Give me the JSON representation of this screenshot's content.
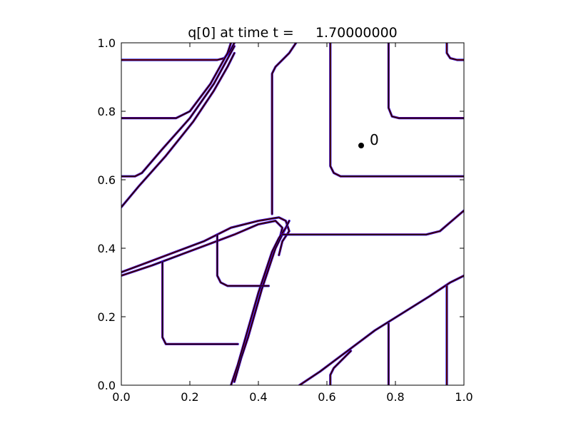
{
  "chart_data": {
    "type": "line",
    "title": "q[0] at time t =     1.70000000",
    "xlabel": "",
    "ylabel": "",
    "xlim": [
      0.0,
      1.0
    ],
    "ylim": [
      0.0,
      1.0
    ],
    "x_ticks": [
      "0.0",
      "0.2",
      "0.4",
      "0.6",
      "0.8",
      "1.0"
    ],
    "y_ticks": [
      "0.0",
      "0.2",
      "0.4",
      "0.6",
      "0.8",
      "1.0"
    ],
    "grid": false,
    "legend": "none",
    "colors": {
      "contour_black": "#000000",
      "contour_blue": "#0000ff",
      "contour_red": "#ff0000",
      "marker": "#000000"
    },
    "annotation": {
      "text": "0",
      "x": 0.7,
      "y": 0.7
    },
    "series": [
      {
        "values": [
          [
            0.0,
            0.95
          ],
          [
            0.28,
            0.95
          ],
          [
            0.3,
            0.955
          ],
          [
            0.32,
            0.98
          ],
          [
            0.33,
            1.0
          ]
        ]
      },
      {
        "values": [
          [
            0.0,
            0.78
          ],
          [
            0.11,
            0.78
          ],
          [
            0.16,
            0.78
          ],
          [
            0.2,
            0.8
          ],
          [
            0.26,
            0.88
          ],
          [
            0.31,
            0.97
          ],
          [
            0.32,
            1.0
          ]
        ]
      },
      {
        "values": [
          [
            0.0,
            0.61
          ],
          [
            0.04,
            0.61
          ],
          [
            0.06,
            0.62
          ],
          [
            0.12,
            0.69
          ],
          [
            0.2,
            0.78
          ],
          [
            0.27,
            0.88
          ],
          [
            0.33,
            0.99
          ]
        ]
      },
      {
        "values": [
          [
            0.0,
            0.52
          ],
          [
            0.05,
            0.58
          ],
          [
            0.13,
            0.67
          ],
          [
            0.21,
            0.77
          ],
          [
            0.27,
            0.86
          ],
          [
            0.31,
            0.93
          ],
          [
            0.33,
            0.97
          ]
        ]
      },
      {
        "values": [
          [
            0.44,
            0.5
          ],
          [
            0.44,
            0.91
          ],
          [
            0.45,
            0.93
          ],
          [
            0.49,
            0.97
          ],
          [
            0.51,
            1.0
          ]
        ]
      },
      {
        "values": [
          [
            0.61,
            1.0
          ],
          [
            0.61,
            0.64
          ],
          [
            0.62,
            0.62
          ],
          [
            0.64,
            0.61
          ],
          [
            1.0,
            0.61
          ]
        ]
      },
      {
        "values": [
          [
            0.78,
            1.0
          ],
          [
            0.78,
            0.81
          ],
          [
            0.79,
            0.785
          ],
          [
            0.81,
            0.78
          ],
          [
            1.0,
            0.78
          ]
        ]
      },
      {
        "values": [
          [
            0.95,
            1.0
          ],
          [
            0.95,
            0.97
          ],
          [
            0.96,
            0.955
          ],
          [
            0.98,
            0.95
          ],
          [
            1.0,
            0.95
          ]
        ]
      },
      {
        "values": [
          [
            0.0,
            0.33
          ],
          [
            0.08,
            0.36
          ],
          [
            0.16,
            0.39
          ],
          [
            0.24,
            0.42
          ],
          [
            0.32,
            0.46
          ],
          [
            0.4,
            0.48
          ],
          [
            0.46,
            0.49
          ],
          [
            0.48,
            0.48
          ],
          [
            0.49,
            0.45
          ],
          [
            0.47,
            0.42
          ],
          [
            0.46,
            0.38
          ]
        ]
      },
      {
        "values": [
          [
            0.0,
            0.32
          ],
          [
            0.09,
            0.35
          ],
          [
            0.17,
            0.38
          ],
          [
            0.25,
            0.41
          ],
          [
            0.33,
            0.44
          ],
          [
            0.4,
            0.47
          ],
          [
            0.45,
            0.48
          ],
          [
            0.47,
            0.46
          ],
          [
            0.46,
            0.42
          ]
        ]
      },
      {
        "values": [
          [
            0.33,
            0.01
          ],
          [
            0.35,
            0.08
          ],
          [
            0.37,
            0.14
          ],
          [
            0.39,
            0.21
          ],
          [
            0.41,
            0.28
          ],
          [
            0.43,
            0.34
          ],
          [
            0.45,
            0.4
          ],
          [
            0.47,
            0.44
          ],
          [
            0.49,
            0.48
          ]
        ]
      },
      {
        "values": [
          [
            0.32,
            0.0
          ],
          [
            0.34,
            0.06
          ],
          [
            0.36,
            0.13
          ],
          [
            0.38,
            0.2
          ],
          [
            0.4,
            0.27
          ],
          [
            0.42,
            0.33
          ],
          [
            0.44,
            0.39
          ],
          [
            0.46,
            0.43
          ],
          [
            0.48,
            0.46
          ]
        ]
      },
      {
        "values": [
          [
            0.47,
            0.44
          ],
          [
            0.6,
            0.44
          ],
          [
            0.89,
            0.44
          ],
          [
            0.93,
            0.45
          ],
          [
            1.0,
            0.51
          ]
        ]
      },
      {
        "values": [
          [
            0.28,
            0.44
          ],
          [
            0.28,
            0.32
          ],
          [
            0.29,
            0.3
          ],
          [
            0.31,
            0.29
          ],
          [
            0.43,
            0.29
          ]
        ]
      },
      {
        "values": [
          [
            0.12,
            0.36
          ],
          [
            0.12,
            0.14
          ],
          [
            0.13,
            0.12
          ],
          [
            0.15,
            0.12
          ],
          [
            0.34,
            0.12
          ]
        ]
      },
      {
        "values": [
          [
            0.52,
            0.0
          ],
          [
            0.58,
            0.04
          ],
          [
            0.66,
            0.1
          ],
          [
            0.74,
            0.16
          ],
          [
            0.82,
            0.21
          ],
          [
            0.9,
            0.26
          ],
          [
            0.96,
            0.3
          ],
          [
            1.0,
            0.32
          ]
        ]
      },
      {
        "values": [
          [
            0.61,
            0.0
          ],
          [
            0.61,
            0.03
          ],
          [
            0.62,
            0.05
          ],
          [
            0.67,
            0.1
          ]
        ]
      },
      {
        "values": [
          [
            0.78,
            0.0
          ],
          [
            0.78,
            0.18
          ]
        ]
      },
      {
        "values": [
          [
            0.95,
            0.0
          ],
          [
            0.95,
            0.29
          ]
        ]
      }
    ]
  }
}
